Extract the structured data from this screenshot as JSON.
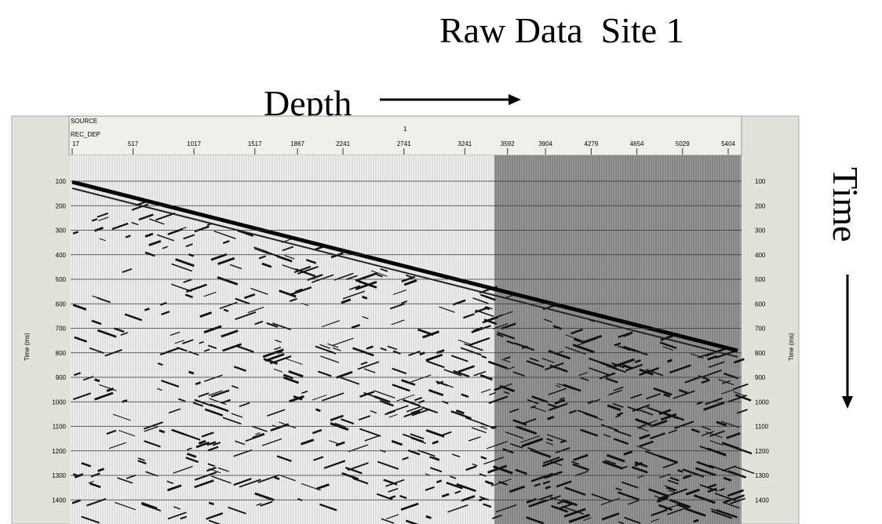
{
  "title": "Raw Data  Site 1",
  "depth_label": "Depth",
  "time_label": "Time",
  "header": {
    "source": "SOURCE",
    "rec_dep": "REC_DEP",
    "source_value": "1"
  },
  "time_axis_label": "Time (ms)",
  "depth_ticks": [
    17,
    517,
    1017,
    1517,
    1867,
    2241,
    2741,
    3241,
    3592,
    3904,
    4279,
    4654,
    5029,
    5404
  ],
  "time_ticks": [
    100,
    200,
    300,
    400,
    500,
    600,
    700,
    800,
    900,
    1000,
    1100,
    1200,
    1300,
    1400
  ]
}
